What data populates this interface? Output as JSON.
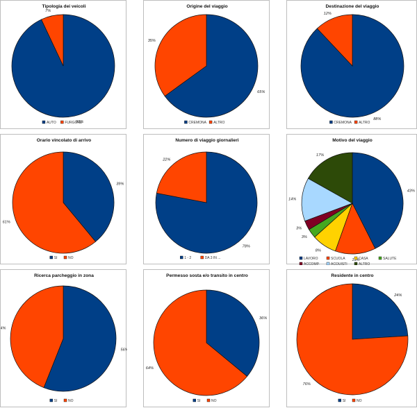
{
  "colors": {
    "blue": "#003f87",
    "orange": "#ff4500",
    "yellow": "#ffd200",
    "green": "#46a820",
    "maroon": "#800024",
    "lightblue": "#a8d8ff",
    "olive": "#2d4a08",
    "outline": "#111111"
  },
  "chart_data": [
    {
      "type": "pie",
      "title": "Tipologia dei veicoli",
      "slices": [
        {
          "name": "AUTO",
          "value": 93,
          "label": "93%",
          "color": "blue"
        },
        {
          "name": "FURGONE",
          "value": 7,
          "label": "7%",
          "color": "orange"
        }
      ],
      "legend_position": "bottom"
    },
    {
      "type": "pie",
      "title": "Origine del viaggio",
      "slices": [
        {
          "name": "CREMONA",
          "value": 65,
          "label": "65%",
          "color": "blue"
        },
        {
          "name": "ALTRO",
          "value": 35,
          "label": "35%",
          "color": "orange"
        }
      ],
      "legend_position": "bottom"
    },
    {
      "type": "pie",
      "title": "Destinazione del viaggio",
      "slices": [
        {
          "name": "CREMONA",
          "value": 88,
          "label": "88%",
          "color": "blue"
        },
        {
          "name": "ALTRO",
          "value": 12,
          "label": "12%",
          "color": "orange"
        }
      ],
      "legend_position": "bottom"
    },
    {
      "type": "pie",
      "title": "Orario vincolato di arrivo",
      "slices": [
        {
          "name": "SI",
          "value": 39,
          "label": "39%",
          "color": "blue"
        },
        {
          "name": "NO",
          "value": 61,
          "label": "61%",
          "color": "orange"
        }
      ],
      "legend_position": "bottom"
    },
    {
      "type": "pie",
      "title": "Numero di viaggio giornalieri",
      "slices": [
        {
          "name": "1 - 2",
          "value": 78,
          "label": "78%",
          "color": "blue"
        },
        {
          "name": "DA 3 IN ...",
          "value": 22,
          "label": "22%",
          "color": "orange"
        }
      ],
      "legend_position": "bottom"
    },
    {
      "type": "pie",
      "title": "Motivo del viaggio",
      "slices": [
        {
          "name": "LAVORO",
          "value": 43,
          "label": "43%",
          "color": "blue"
        },
        {
          "name": "SCUOLA",
          "value": 13,
          "label": "13%",
          "color": "orange"
        },
        {
          "name": "CASA",
          "value": 8,
          "label": "8%",
          "color": "yellow"
        },
        {
          "name": "SALUTE",
          "value": 3,
          "label": "3%",
          "color": "green"
        },
        {
          "name": "ACCOMP.",
          "value": 3,
          "label": "3%",
          "color": "maroon"
        },
        {
          "name": "ACQUISTI",
          "value": 14,
          "label": "14%",
          "color": "lightblue"
        },
        {
          "name": "ALTRO",
          "value": 17,
          "label": "17%",
          "color": "olive"
        }
      ],
      "legend_position": "bottom"
    },
    {
      "type": "pie",
      "title": "Ricerca  parcheggio in zona",
      "slices": [
        {
          "name": "SI",
          "value": 56,
          "label": "56%",
          "color": "blue"
        },
        {
          "name": "NO",
          "value": 44,
          "label": "44%",
          "color": "orange"
        }
      ],
      "legend_position": "bottom"
    },
    {
      "type": "pie",
      "title": "Permesso sosta e/o transito in centro",
      "slices": [
        {
          "name": "SI",
          "value": 36,
          "label": "36%",
          "color": "blue"
        },
        {
          "name": "NO",
          "value": 64,
          "label": "64%",
          "color": "orange"
        }
      ],
      "legend_position": "bottom"
    },
    {
      "type": "pie",
      "title": "Residente in centro",
      "slices": [
        {
          "name": "SI",
          "value": 24,
          "label": "24%",
          "color": "blue"
        },
        {
          "name": "NO",
          "value": 76,
          "label": "76%",
          "color": "orange"
        }
      ],
      "legend_position": "bottom"
    }
  ]
}
